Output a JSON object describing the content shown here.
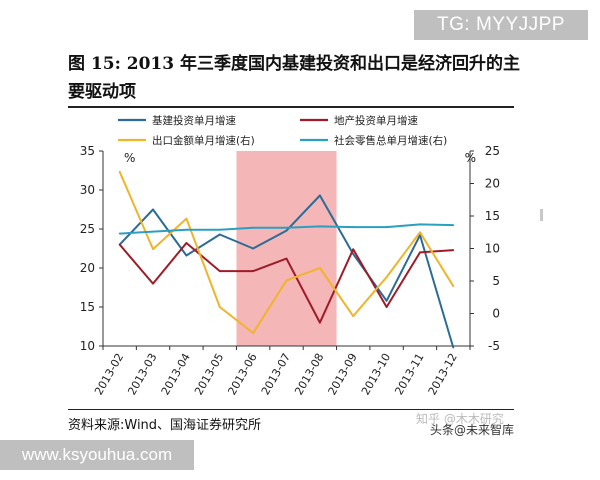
{
  "badges": {
    "top_right": "TG: MYYJJPP",
    "bottom_left": "www.ksyouhua.com"
  },
  "figure": {
    "title": "图 15:  2013 年三季度国内基建投资和出口是经济回升的主要驱动项",
    "source": "资料来源:Wind、国海证券研究所",
    "watermark_faint": "知乎 @木木研究",
    "watermark": "头条@未来智库"
  },
  "chart_data": {
    "type": "line",
    "categories": [
      "2013-02",
      "2013-03",
      "2013-04",
      "2013-05",
      "2013-06",
      "2013-07",
      "2013-08",
      "2013-09",
      "2013-10",
      "2013-11",
      "2013-12"
    ],
    "left_axis": {
      "ylim": [
        10,
        35
      ],
      "ticks": [
        10,
        15,
        20,
        25,
        30,
        35
      ],
      "unit": "%"
    },
    "right_axis": {
      "ylim": [
        -5,
        25
      ],
      "ticks": [
        -5,
        0,
        5,
        10,
        15,
        20,
        25
      ],
      "unit": "%"
    },
    "highlight": {
      "from": "2013-06",
      "to": "2013-08",
      "color": "#f4b6b7"
    },
    "legend_position": "top",
    "series": [
      {
        "name": "基建投资单月增速",
        "axis": "left",
        "color": "#2b6c97",
        "values": [
          23.0,
          27.5,
          21.6,
          24.3,
          22.5,
          24.8,
          29.3,
          21.8,
          15.8,
          24.2,
          9.8
        ]
      },
      {
        "name": "地产投资单月增速",
        "axis": "left",
        "color": "#9e1c28",
        "values": [
          23.0,
          18.0,
          23.2,
          19.6,
          19.6,
          21.2,
          13.0,
          22.4,
          15.0,
          22.0,
          22.3
        ]
      },
      {
        "name": "出口金额单月增速(右)",
        "axis": "right",
        "color": "#f0b429",
        "values": [
          21.8,
          9.9,
          14.6,
          1.0,
          -3.0,
          5.1,
          7.0,
          -0.4,
          5.6,
          12.5,
          4.2
        ]
      },
      {
        "name": "社会零售总单月增速(右)",
        "axis": "right",
        "color": "#2a9fbf",
        "values": [
          12.3,
          12.6,
          12.9,
          12.9,
          13.2,
          13.2,
          13.4,
          13.3,
          13.3,
          13.7,
          13.6
        ]
      }
    ]
  }
}
